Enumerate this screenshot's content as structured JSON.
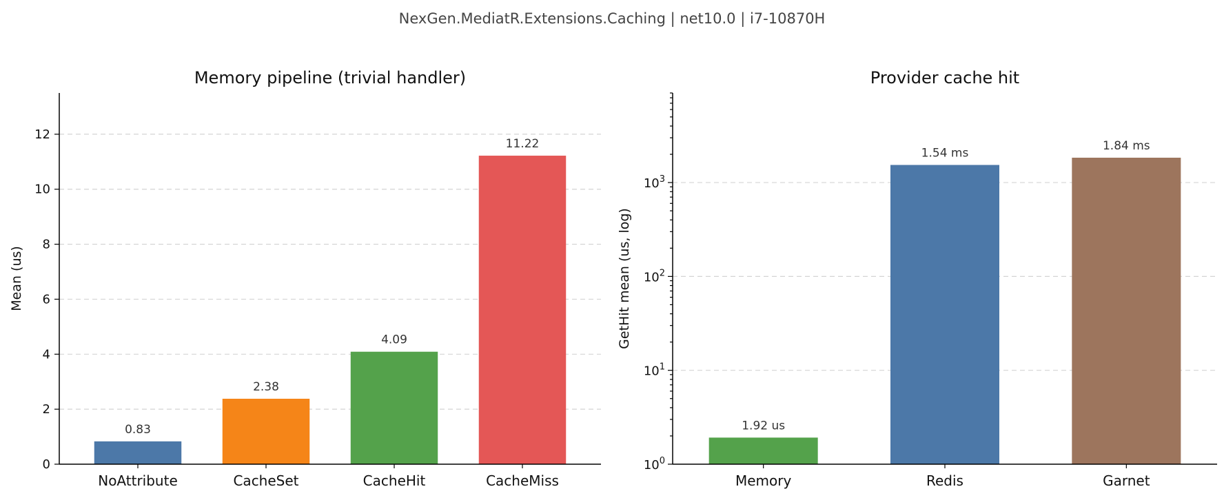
{
  "suptitle": "NexGen.MediatR.Extensions.Caching  |  net10.0  |  i7-10870H",
  "chart_data": [
    {
      "type": "bar",
      "title": "Memory pipeline (trivial handler)",
      "ylabel": "Mean (us)",
      "xlabel": "",
      "scale": "linear",
      "ylim": [
        0,
        13.5
      ],
      "yticks": [
        0,
        2,
        4,
        6,
        8,
        10,
        12
      ],
      "grid": "y-dashed",
      "categories": [
        "NoAttribute",
        "CacheSet",
        "CacheHit",
        "CacheMiss"
      ],
      "values": [
        0.83,
        2.38,
        4.09,
        11.22
      ],
      "labels": [
        "0.83",
        "2.38",
        "4.09",
        "11.22"
      ],
      "colors": [
        "#4c78a8",
        "#f58518",
        "#54a24b",
        "#e45756"
      ]
    },
    {
      "type": "bar",
      "title": "Provider cache hit",
      "ylabel": "GetHit mean (us, log)",
      "xlabel": "",
      "scale": "log",
      "ylim": [
        1,
        9000
      ],
      "yticks": [
        1,
        10,
        100,
        1000
      ],
      "ytick_labels": [
        {
          "base": "10",
          "exp": "0"
        },
        {
          "base": "10",
          "exp": "1"
        },
        {
          "base": "10",
          "exp": "2"
        },
        {
          "base": "10",
          "exp": "3"
        }
      ],
      "grid": "y-dashed",
      "categories": [
        "Memory",
        "Redis",
        "Garnet"
      ],
      "values": [
        1.92,
        1540,
        1840
      ],
      "labels": [
        "1.92 us",
        "1.54 ms",
        "1.84 ms"
      ],
      "colors": [
        "#54a24b",
        "#4c78a8",
        "#9d755d"
      ]
    }
  ]
}
